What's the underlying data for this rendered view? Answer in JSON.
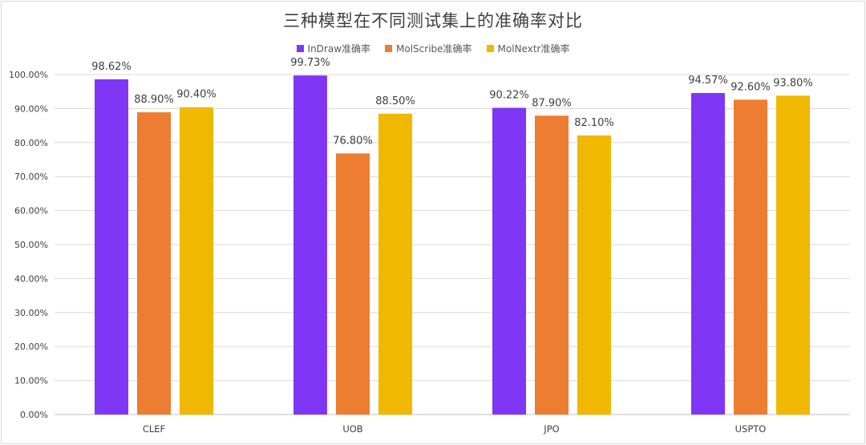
{
  "chart_data": {
    "type": "bar",
    "title": "三种模型在不同测试集上的准确率对比",
    "categories": [
      "CLEF",
      "UOB",
      "JPO",
      "USPTO"
    ],
    "series": [
      {
        "name": "InDraw准确率",
        "color": "#7f37f5",
        "values": [
          98.62,
          99.73,
          90.22,
          94.57
        ],
        "labels": [
          "98.62%",
          "99.73%",
          "90.22%",
          "94.57%"
        ]
      },
      {
        "name": "MolScribe准确率",
        "color": "#ed7d31",
        "values": [
          88.9,
          76.8,
          87.9,
          92.6
        ],
        "labels": [
          "88.90%",
          "76.80%",
          "87.90%",
          "92.60%"
        ]
      },
      {
        "name": "MolNextr准确率",
        "color": "#f0b800",
        "values": [
          90.4,
          88.5,
          82.1,
          93.8
        ],
        "labels": [
          "90.40%",
          "88.50%",
          "82.10%",
          "93.80%"
        ]
      }
    ],
    "ylim": [
      0,
      100
    ],
    "yticks": [
      "0.00%",
      "10.00%",
      "20.00%",
      "30.00%",
      "40.00%",
      "50.00%",
      "60.00%",
      "70.00%",
      "80.00%",
      "90.00%",
      "100.00%"
    ],
    "grid": true,
    "legend_position": "top"
  }
}
